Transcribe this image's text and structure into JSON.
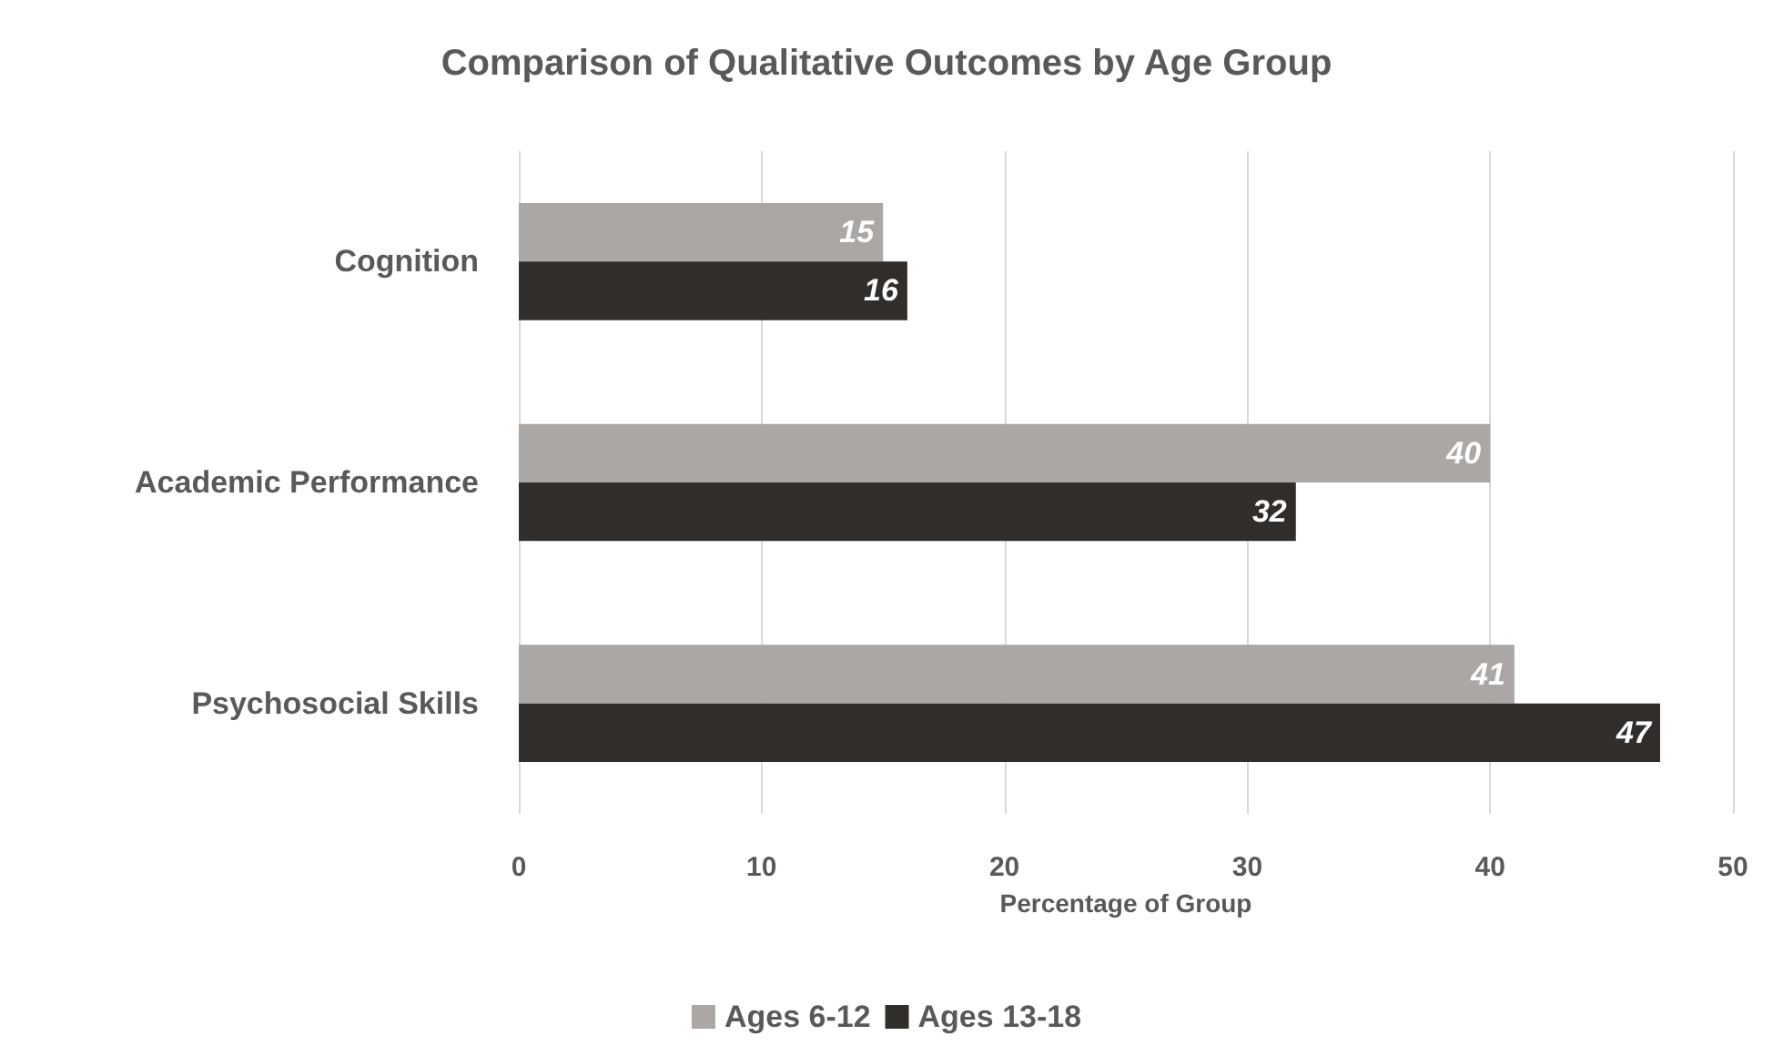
{
  "chart_data": {
    "type": "bar",
    "orientation": "horizontal",
    "title": "Comparison of Qualitative Outcomes by Age Group",
    "xlabel": "Percentage of Group",
    "categories": [
      "Cognition",
      "Academic Performance",
      "Psychosocial Skills"
    ],
    "series": [
      {
        "name": "Ages 6-12",
        "color": "#aaa7a4",
        "values": [
          15,
          40,
          41
        ]
      },
      {
        "name": "Ages 13-18",
        "color": "#302d2b",
        "values": [
          16,
          32,
          47
        ]
      }
    ],
    "xlim": [
      0,
      50
    ],
    "xticks": [
      0,
      10,
      20,
      30,
      40,
      50
    ],
    "grid": "x",
    "legend": "bottom",
    "data_labels": true
  }
}
